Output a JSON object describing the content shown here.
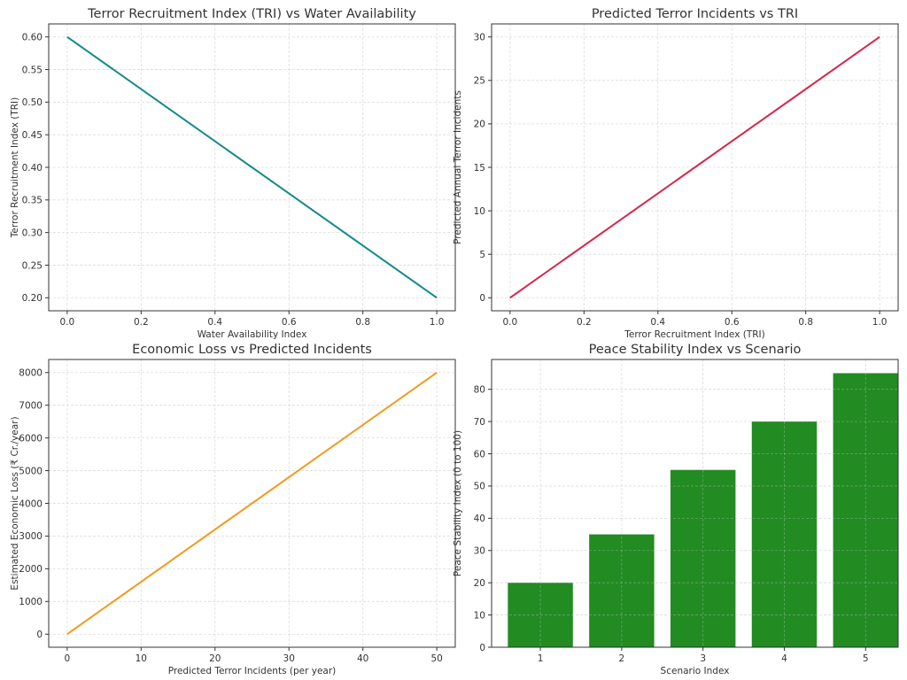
{
  "colors": {
    "line_teal": "#138a8a",
    "line_crimson": "#d6264a",
    "line_orange": "#f29a1d",
    "bar_green": "#228b22"
  },
  "chart_data": [
    {
      "id": "tri-vs-water",
      "type": "line",
      "title": "Terror Recruitment Index (TRI) vs Water Availability",
      "xlabel": "Water Availability Index",
      "ylabel": "Terror Recruitment Index (TRI)",
      "x": [
        0.0,
        1.0
      ],
      "series": [
        {
          "values": [
            0.6,
            0.2
          ],
          "color": "#138a8a"
        }
      ],
      "xlim": [
        -0.05,
        1.05
      ],
      "ylim": [
        0.18,
        0.62
      ],
      "xticks": [
        0.0,
        0.2,
        0.4,
        0.6,
        0.8,
        1.0
      ],
      "xtick_labels": [
        "0.0",
        "0.2",
        "0.4",
        "0.6",
        "0.8",
        "1.0"
      ],
      "yticks": [
        0.2,
        0.25,
        0.3,
        0.35,
        0.4,
        0.45,
        0.5,
        0.55,
        0.6
      ],
      "ytick_labels": [
        "0.20",
        "0.25",
        "0.30",
        "0.35",
        "0.40",
        "0.45",
        "0.50",
        "0.55",
        "0.60"
      ],
      "grid": true
    },
    {
      "id": "incidents-vs-tri",
      "type": "line",
      "title": "Predicted Terror Incidents vs TRI",
      "xlabel": "Terror Recruitment Index (TRI)",
      "ylabel": "Predicted Annual Terror Incidents",
      "x": [
        0.0,
        1.0
      ],
      "series": [
        {
          "values": [
            0,
            30
          ],
          "color": "#d6264a"
        }
      ],
      "xlim": [
        -0.05,
        1.05
      ],
      "ylim": [
        -1.5,
        31.5
      ],
      "xticks": [
        0.0,
        0.2,
        0.4,
        0.6,
        0.8,
        1.0
      ],
      "xtick_labels": [
        "0.0",
        "0.2",
        "0.4",
        "0.6",
        "0.8",
        "1.0"
      ],
      "yticks": [
        0,
        5,
        10,
        15,
        20,
        25,
        30
      ],
      "ytick_labels": [
        "0",
        "5",
        "10",
        "15",
        "20",
        "25",
        "30"
      ],
      "grid": true
    },
    {
      "id": "loss-vs-incidents",
      "type": "line",
      "title": "Economic Loss vs Predicted Incidents",
      "xlabel": "Predicted Terror Incidents (per year)",
      "ylabel": "Estimated Economic Loss (₹ Cr./year)",
      "x": [
        0,
        50
      ],
      "series": [
        {
          "values": [
            0,
            8000
          ],
          "color": "#f29a1d"
        }
      ],
      "xlim": [
        -2.5,
        52.5
      ],
      "ylim": [
        -400,
        8400
      ],
      "xticks": [
        0,
        10,
        20,
        30,
        40,
        50
      ],
      "xtick_labels": [
        "0",
        "10",
        "20",
        "30",
        "40",
        "50"
      ],
      "yticks": [
        0,
        1000,
        2000,
        3000,
        4000,
        5000,
        6000,
        7000,
        8000
      ],
      "ytick_labels": [
        "0",
        "1000",
        "2000",
        "3000",
        "4000",
        "5000",
        "6000",
        "7000",
        "8000"
      ],
      "grid": true
    },
    {
      "id": "peace-vs-scenario",
      "type": "bar",
      "title": "Peace Stability Index vs Scenario",
      "xlabel": "Scenario Index",
      "ylabel": "Peace Stability Index (0 to 100)",
      "categories": [
        "1",
        "2",
        "3",
        "4",
        "5"
      ],
      "series": [
        {
          "values": [
            20,
            35,
            55,
            70,
            85
          ],
          "color": "#228b22"
        }
      ],
      "xlim": [
        0.4,
        5.4
      ],
      "ylim": [
        0,
        89.25
      ],
      "yticks": [
        0,
        10,
        20,
        30,
        40,
        50,
        60,
        70,
        80
      ],
      "ytick_labels": [
        "0",
        "10",
        "20",
        "30",
        "40",
        "50",
        "60",
        "70",
        "80"
      ],
      "grid": true
    }
  ]
}
